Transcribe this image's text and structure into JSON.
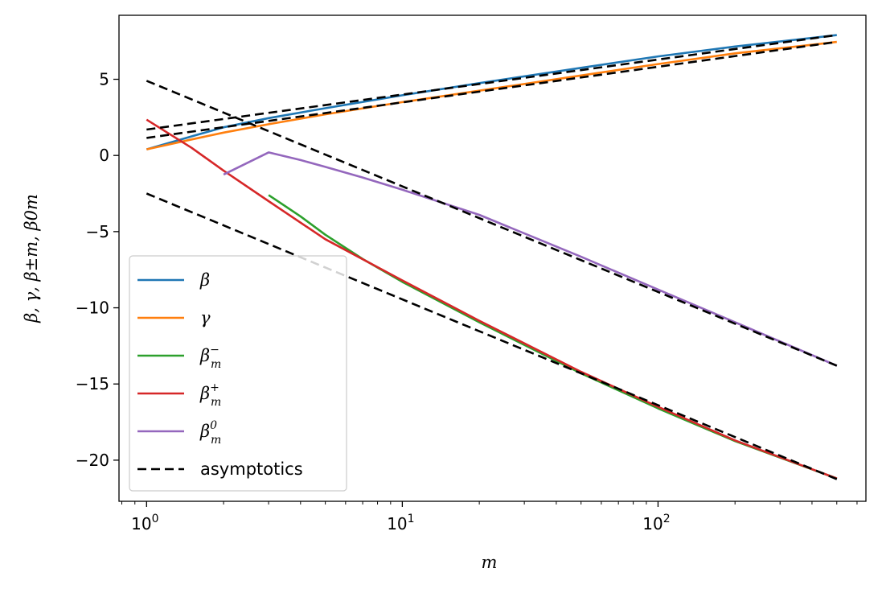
{
  "chart_data": {
    "type": "line",
    "title": "",
    "xlabel": "m",
    "ylabel": "β, γ, β±m, β0m",
    "xscale": "log",
    "xlim": [
      0.78,
      650
    ],
    "ylim": [
      -22.7,
      9.2
    ],
    "xticks": [
      {
        "value": 1,
        "base": "10",
        "exp": "0"
      },
      {
        "value": 10,
        "base": "10",
        "exp": "1"
      },
      {
        "value": 100,
        "base": "10",
        "exp": "2"
      }
    ],
    "yticks": [
      {
        "value": 5,
        "label": "5"
      },
      {
        "value": 0,
        "label": "0"
      },
      {
        "value": -5,
        "label": "−5"
      },
      {
        "value": -10,
        "label": "−10"
      },
      {
        "value": -15,
        "label": "−15"
      },
      {
        "value": -20,
        "label": "−20"
      }
    ],
    "grid": false,
    "legend_position": "lower-left",
    "series": [
      {
        "key": "beta",
        "name": "β",
        "sup": "",
        "sub": "",
        "color": "#1f77b4",
        "dash": "solid",
        "x": [
          1,
          1.5,
          2,
          3,
          5,
          10,
          20,
          50,
          100,
          200,
          500
        ],
        "y": [
          0.4,
          1.25,
          1.85,
          2.45,
          3.1,
          3.95,
          4.75,
          5.75,
          6.5,
          7.15,
          7.9
        ]
      },
      {
        "key": "gamma",
        "name": "γ",
        "sup": "",
        "sub": "",
        "color": "#ff7f0e",
        "dash": "solid",
        "x": [
          1,
          1.5,
          2,
          3,
          5,
          10,
          20,
          50,
          100,
          200,
          500
        ],
        "y": [
          0.4,
          1.05,
          1.5,
          2.05,
          2.7,
          3.5,
          4.25,
          5.25,
          6.0,
          6.7,
          7.45
        ]
      },
      {
        "key": "beta-minus",
        "name": "β",
        "sup": "−",
        "sub": "m",
        "color": "#2ca02c",
        "dash": "solid",
        "x": [
          3,
          4,
          5,
          7,
          10,
          20,
          50,
          100,
          200,
          500
        ],
        "y": [
          -2.6,
          -4.0,
          -5.2,
          -6.8,
          -8.3,
          -10.95,
          -14.3,
          -16.6,
          -18.75,
          -21.2
        ]
      },
      {
        "key": "beta-plus",
        "name": "β",
        "sup": "+",
        "sub": "m",
        "color": "#d62728",
        "dash": "solid",
        "x": [
          1,
          1.5,
          2,
          3,
          5,
          10,
          20,
          50,
          100,
          200,
          500
        ],
        "y": [
          2.35,
          0.5,
          -1.0,
          -3.0,
          -5.5,
          -8.2,
          -10.85,
          -14.2,
          -16.5,
          -18.7,
          -21.2
        ]
      },
      {
        "key": "beta-zero",
        "name": "β",
        "sup": "0",
        "sub": "m",
        "color": "#9467bd",
        "dash": "solid",
        "x": [
          2,
          3,
          4,
          5,
          7,
          10,
          20,
          50,
          100,
          200,
          500
        ],
        "y": [
          -1.25,
          0.2,
          -0.3,
          -0.75,
          -1.45,
          -2.25,
          -3.9,
          -6.65,
          -8.8,
          -10.95,
          -13.8
        ]
      },
      {
        "key": "asymptotics",
        "name": "asymptotics",
        "sup": "",
        "sub": "",
        "color": "#000000",
        "dash": "dashed",
        "lines": [
          {
            "x": [
              1,
              500
            ],
            "y": [
              1.7,
              7.9
            ]
          },
          {
            "x": [
              1,
              500
            ],
            "y": [
              1.15,
              7.45
            ]
          },
          {
            "x": [
              1,
              500
            ],
            "y": [
              4.9,
              -13.8
            ]
          },
          {
            "x": [
              1,
              500
            ],
            "y": [
              -2.5,
              -21.25
            ]
          }
        ]
      }
    ]
  }
}
